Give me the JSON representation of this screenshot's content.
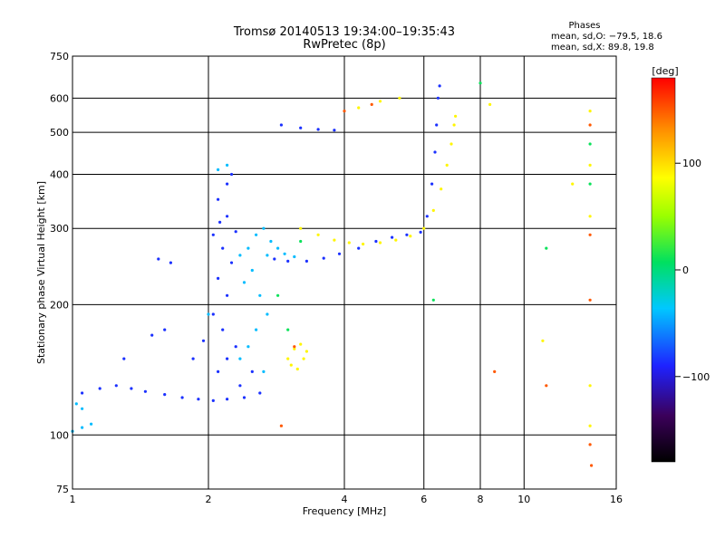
{
  "chart_data": {
    "type": "scatter",
    "title": "Tromsø 20140513 19:34:00–19:35:43",
    "subtitle": "RwPretec (8p)",
    "xlabel": "Frequency [MHz]",
    "ylabel": "Stationary phase Virtual Height [km]",
    "x_scale": "log",
    "y_scale": "log",
    "xlim": [
      1,
      16
    ],
    "ylim": [
      75,
      750
    ],
    "xticks": [
      1,
      2,
      4,
      6,
      8,
      10,
      16
    ],
    "xtick_labels": [
      "1",
      "2",
      "4",
      "6",
      "8",
      "10",
      "16"
    ],
    "yticks": [
      75,
      100,
      200,
      300,
      400,
      500,
      600,
      750
    ],
    "ytick_labels": [
      "75",
      "100",
      "200",
      "300",
      "400",
      "500",
      "600",
      "750"
    ],
    "grid": true,
    "phase_info": {
      "title": "Phases",
      "line1": "mean, sd,O: −79.5, 18.6",
      "line2": "mean, sd,X:  89.8, 19.8"
    },
    "colorbar": {
      "label": "[deg]",
      "range": [
        -180,
        180
      ],
      "ticks": [
        -100,
        0,
        100
      ],
      "tick_labels": [
        "−100",
        "0",
        "100"
      ]
    },
    "series": [
      {
        "name": "",
        "phase_deg": -85,
        "points": [
          [
            1.05,
            125
          ],
          [
            1.15,
            128
          ],
          [
            1.25,
            130
          ],
          [
            1.35,
            128
          ],
          [
            1.45,
            126
          ],
          [
            1.6,
            124
          ],
          [
            1.75,
            122
          ],
          [
            1.9,
            121
          ],
          [
            2.05,
            120
          ],
          [
            2.2,
            121
          ],
          [
            2.4,
            122
          ],
          [
            2.1,
            140
          ],
          [
            2.2,
            150
          ],
          [
            2.3,
            160
          ],
          [
            2.15,
            175
          ],
          [
            2.05,
            190
          ],
          [
            2.2,
            210
          ],
          [
            2.1,
            230
          ],
          [
            2.25,
            250
          ],
          [
            2.15,
            270
          ],
          [
            2.05,
            290
          ],
          [
            2.2,
            320
          ],
          [
            2.1,
            350
          ],
          [
            2.2,
            380
          ],
          [
            2.25,
            400
          ],
          [
            2.12,
            310
          ],
          [
            2.3,
            295
          ],
          [
            2.8,
            255
          ],
          [
            3.0,
            252
          ],
          [
            3.3,
            252
          ],
          [
            3.6,
            256
          ],
          [
            3.9,
            262
          ],
          [
            4.3,
            270
          ],
          [
            4.7,
            280
          ],
          [
            5.1,
            286
          ],
          [
            5.5,
            290
          ],
          [
            5.9,
            294
          ],
          [
            6.1,
            320
          ],
          [
            6.25,
            380
          ],
          [
            6.35,
            450
          ],
          [
            6.4,
            520
          ],
          [
            6.45,
            600
          ],
          [
            6.5,
            640
          ],
          [
            2.9,
            520
          ],
          [
            3.2,
            512
          ],
          [
            3.5,
            508
          ],
          [
            3.8,
            506
          ],
          [
            1.5,
            170
          ],
          [
            1.6,
            175
          ],
          [
            1.3,
            150
          ],
          [
            1.55,
            255
          ],
          [
            1.65,
            250
          ],
          [
            2.5,
            140
          ],
          [
            2.6,
            125
          ],
          [
            1.85,
            150
          ],
          [
            1.95,
            165
          ],
          [
            2.35,
            130
          ]
        ]
      },
      {
        "name": "",
        "phase_deg": -40,
        "points": [
          [
            1.02,
            118
          ],
          [
            1.05,
            115
          ],
          [
            1.0,
            102
          ],
          [
            1.05,
            104
          ],
          [
            1.1,
            106
          ],
          [
            2.35,
            260
          ],
          [
            2.45,
            270
          ],
          [
            2.55,
            290
          ],
          [
            2.65,
            300
          ],
          [
            2.5,
            240
          ],
          [
            2.4,
            225
          ],
          [
            2.6,
            210
          ],
          [
            2.7,
            190
          ],
          [
            2.55,
            175
          ],
          [
            2.45,
            160
          ],
          [
            2.35,
            150
          ],
          [
            2.65,
            140
          ],
          [
            2.75,
            280
          ],
          [
            2.85,
            270
          ],
          [
            2.95,
            262
          ],
          [
            3.1,
            258
          ],
          [
            2.1,
            410
          ],
          [
            2.2,
            420
          ],
          [
            2.0,
            190
          ],
          [
            2.7,
            260
          ]
        ]
      },
      {
        "name": "",
        "phase_deg": 90,
        "points": [
          [
            3.2,
            300
          ],
          [
            3.5,
            290
          ],
          [
            3.8,
            282
          ],
          [
            4.1,
            278
          ],
          [
            4.4,
            276
          ],
          [
            4.8,
            278
          ],
          [
            5.2,
            282
          ],
          [
            5.6,
            288
          ],
          [
            6.0,
            300
          ],
          [
            6.3,
            330
          ],
          [
            6.55,
            370
          ],
          [
            6.75,
            420
          ],
          [
            6.9,
            470
          ],
          [
            7.0,
            520
          ],
          [
            7.05,
            545
          ],
          [
            3.0,
            150
          ],
          [
            3.1,
            158
          ],
          [
            3.2,
            162
          ],
          [
            3.25,
            150
          ],
          [
            3.15,
            142
          ],
          [
            3.05,
            145
          ],
          [
            3.3,
            156
          ],
          [
            4.3,
            570
          ],
          [
            4.8,
            590
          ],
          [
            5.3,
            600
          ],
          [
            14.0,
            560
          ],
          [
            14.0,
            420
          ],
          [
            14.0,
            320
          ],
          [
            14.0,
            130
          ],
          [
            14.0,
            105
          ],
          [
            8.4,
            580
          ],
          [
            11.0,
            165
          ],
          [
            12.8,
            380
          ]
        ]
      },
      {
        "name": "",
        "phase_deg": 150,
        "points": [
          [
            4.0,
            560
          ],
          [
            4.6,
            580
          ],
          [
            14.0,
            520
          ],
          [
            14.0,
            290
          ],
          [
            14.0,
            205
          ],
          [
            14.0,
            95
          ],
          [
            8.6,
            140
          ],
          [
            11.2,
            130
          ],
          [
            2.9,
            105
          ],
          [
            3.1,
            160
          ],
          [
            14.1,
            85
          ]
        ]
      },
      {
        "name": "",
        "phase_deg": 10,
        "points": [
          [
            14.0,
            470
          ],
          [
            14.0,
            380
          ],
          [
            6.3,
            205
          ],
          [
            8.0,
            650
          ],
          [
            3.2,
            280
          ],
          [
            11.2,
            270
          ],
          [
            2.85,
            210
          ],
          [
            3.0,
            175
          ]
        ]
      }
    ]
  }
}
